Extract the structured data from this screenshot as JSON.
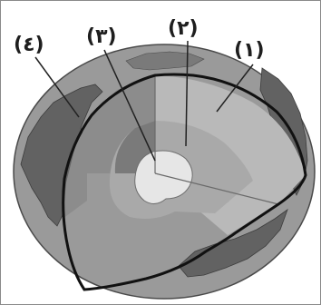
{
  "labels": {
    "layer_1": "(١)",
    "layer_2": "(٢)",
    "layer_3": "(٣)",
    "layer_4": "(٤)"
  },
  "colors": {
    "ocean": "#9a9a9a",
    "land": "#5f5f5f",
    "crust_outline": "#111111",
    "mantle": "#8c8c8c",
    "outer_core": "#a9a9a9",
    "inner_core": "#e6e6e6",
    "cut_face_mantle": "#b9b9b9",
    "cut_face_outer_core": "#cfcfcf"
  }
}
